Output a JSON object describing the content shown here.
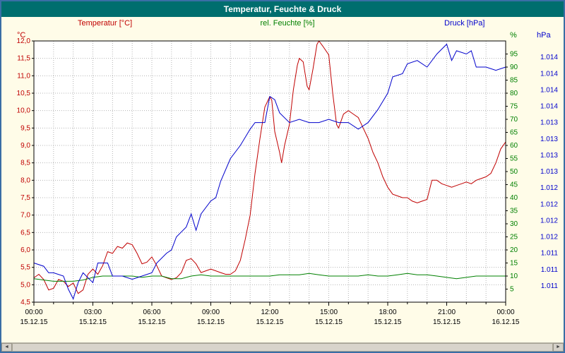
{
  "window": {
    "title": "Temperatur, Feuchte & Druck"
  },
  "colors": {
    "titlebar_bg": "#006e6e",
    "titlebar_text": "#ffffff",
    "frame_border": "#3a6ea5",
    "background": "#fffce8",
    "temperature": "#c00000",
    "humidity": "#008000",
    "pressure": "#0000cc"
  },
  "scrollbar": {
    "left_arrow": "◄",
    "right_arrow": "►"
  },
  "chart_data": {
    "type": "line",
    "title": "Temperatur, Feuchte & Druck",
    "grid": true,
    "grid_color": "#b4b4b4",
    "x_axis": {
      "min": 0,
      "max": 24,
      "minor_step_hours": 1,
      "ticks": [
        {
          "h": 0,
          "time": "00:00",
          "date": "15.12.15"
        },
        {
          "h": 3,
          "time": "03:00",
          "date": "15.12.15"
        },
        {
          "h": 6,
          "time": "06:00",
          "date": "15.12.15"
        },
        {
          "h": 9,
          "time": "09:00",
          "date": "15.12.15"
        },
        {
          "h": 12,
          "time": "12:00",
          "date": "15.12.15"
        },
        {
          "h": 15,
          "time": "15:00",
          "date": "15.12.15"
        },
        {
          "h": 18,
          "time": "18:00",
          "date": "15.12.15"
        },
        {
          "h": 21,
          "time": "21:00",
          "date": "15.12.15"
        },
        {
          "h": 24,
          "time": "00:00",
          "date": "16.12.15"
        }
      ]
    },
    "axes": {
      "temp": {
        "unit": "°C",
        "color": "#c00000",
        "min": 4.5,
        "max": 12.0,
        "ticks": [
          {
            "v": 12.0,
            "label": "12,0"
          },
          {
            "v": 11.5,
            "label": "11,5"
          },
          {
            "v": 11.0,
            "label": "11,0"
          },
          {
            "v": 10.5,
            "label": "10,5"
          },
          {
            "v": 10.0,
            "label": "10,0"
          },
          {
            "v": 9.5,
            "label": "9,5"
          },
          {
            "v": 9.0,
            "label": "9,0"
          },
          {
            "v": 8.5,
            "label": "8,5"
          },
          {
            "v": 8.0,
            "label": "8,0"
          },
          {
            "v": 7.5,
            "label": "7,5"
          },
          {
            "v": 7.0,
            "label": "7,0"
          },
          {
            "v": 6.5,
            "label": "6,5"
          },
          {
            "v": 6.0,
            "label": "6,0"
          },
          {
            "v": 5.5,
            "label": "5,5"
          },
          {
            "v": 5.0,
            "label": "5,0"
          },
          {
            "v": 4.5,
            "label": "4,5"
          }
        ]
      },
      "humidity": {
        "unit": "%",
        "color": "#008000",
        "min": 0,
        "max": 100,
        "ticks": [
          {
            "v": 95,
            "label": "95"
          },
          {
            "v": 90,
            "label": "90"
          },
          {
            "v": 85,
            "label": "85"
          },
          {
            "v": 80,
            "label": "80"
          },
          {
            "v": 75,
            "label": "75"
          },
          {
            "v": 70,
            "label": "70"
          },
          {
            "v": 65,
            "label": "65"
          },
          {
            "v": 60,
            "label": "60"
          },
          {
            "v": 55,
            "label": "55"
          },
          {
            "v": 50,
            "label": "50"
          },
          {
            "v": 45,
            "label": "45"
          },
          {
            "v": 40,
            "label": "40"
          },
          {
            "v": 35,
            "label": "35"
          },
          {
            "v": 30,
            "label": "30"
          },
          {
            "v": 25,
            "label": "25"
          },
          {
            "v": 20,
            "label": "20"
          },
          {
            "v": 15,
            "label": "15"
          },
          {
            "v": 10,
            "label": "10"
          },
          {
            "v": 5,
            "label": "5"
          }
        ]
      },
      "pressure": {
        "unit": "hPa",
        "color": "#0000cc",
        "min": 1010.5,
        "max": 1014.5,
        "ticks": [
          {
            "v": 1014.25,
            "label": "1.014"
          },
          {
            "v": 1014.0,
            "label": "1.014"
          },
          {
            "v": 1013.75,
            "label": "1.014"
          },
          {
            "v": 1013.5,
            "label": "1.014"
          },
          {
            "v": 1013.25,
            "label": "1.013"
          },
          {
            "v": 1013.0,
            "label": "1.013"
          },
          {
            "v": 1012.75,
            "label": "1.013"
          },
          {
            "v": 1012.5,
            "label": "1.013"
          },
          {
            "v": 1012.25,
            "label": "1.012"
          },
          {
            "v": 1012.0,
            "label": "1.012"
          },
          {
            "v": 1011.75,
            "label": "1.012"
          },
          {
            "v": 1011.5,
            "label": "1.012"
          },
          {
            "v": 1011.25,
            "label": "1.011"
          },
          {
            "v": 1011.0,
            "label": "1.011"
          },
          {
            "v": 1010.75,
            "label": "1.011"
          }
        ]
      }
    },
    "series": [
      {
        "name": "Temperatur [°C]",
        "axis": "temp",
        "color": "#c00000",
        "points": [
          [
            0,
            5.2
          ],
          [
            0.25,
            5.3
          ],
          [
            0.5,
            5.15
          ],
          [
            0.75,
            4.85
          ],
          [
            1,
            4.9
          ],
          [
            1.25,
            5.15
          ],
          [
            1.5,
            5.1
          ],
          [
            1.75,
            4.95
          ],
          [
            2,
            5.05
          ],
          [
            2.25,
            4.75
          ],
          [
            2.5,
            4.85
          ],
          [
            2.75,
            5.3
          ],
          [
            3,
            5.45
          ],
          [
            3.25,
            5.3
          ],
          [
            3.5,
            5.55
          ],
          [
            3.75,
            5.95
          ],
          [
            4,
            5.9
          ],
          [
            4.25,
            6.1
          ],
          [
            4.5,
            6.05
          ],
          [
            4.75,
            6.2
          ],
          [
            5,
            6.15
          ],
          [
            5.25,
            5.9
          ],
          [
            5.5,
            5.6
          ],
          [
            5.75,
            5.65
          ],
          [
            6,
            5.8
          ],
          [
            6.25,
            5.55
          ],
          [
            6.5,
            5.25
          ],
          [
            6.75,
            5.2
          ],
          [
            7,
            5.15
          ],
          [
            7.25,
            5.2
          ],
          [
            7.5,
            5.35
          ],
          [
            7.75,
            5.7
          ],
          [
            8,
            5.75
          ],
          [
            8.25,
            5.6
          ],
          [
            8.5,
            5.35
          ],
          [
            8.75,
            5.4
          ],
          [
            9,
            5.45
          ],
          [
            9.25,
            5.4
          ],
          [
            9.5,
            5.35
          ],
          [
            9.75,
            5.3
          ],
          [
            10,
            5.3
          ],
          [
            10.25,
            5.4
          ],
          [
            10.5,
            5.7
          ],
          [
            10.75,
            6.3
          ],
          [
            11,
            7.0
          ],
          [
            11.25,
            8.2
          ],
          [
            11.5,
            9.2
          ],
          [
            11.75,
            10.1
          ],
          [
            12,
            10.4
          ],
          [
            12.1,
            10.3
          ],
          [
            12.25,
            9.4
          ],
          [
            12.5,
            8.8
          ],
          [
            12.6,
            8.5
          ],
          [
            12.75,
            9.0
          ],
          [
            13,
            9.6
          ],
          [
            13.2,
            10.6
          ],
          [
            13.4,
            11.3
          ],
          [
            13.5,
            11.5
          ],
          [
            13.7,
            11.4
          ],
          [
            13.9,
            10.7
          ],
          [
            14,
            10.6
          ],
          [
            14.2,
            11.2
          ],
          [
            14.4,
            11.9
          ],
          [
            14.5,
            12.0
          ],
          [
            14.7,
            11.85
          ],
          [
            15,
            11.6
          ],
          [
            15.2,
            10.5
          ],
          [
            15.4,
            9.6
          ],
          [
            15.5,
            9.5
          ],
          [
            15.75,
            9.9
          ],
          [
            16,
            10.0
          ],
          [
            16.25,
            9.9
          ],
          [
            16.5,
            9.8
          ],
          [
            16.75,
            9.5
          ],
          [
            17,
            9.2
          ],
          [
            17.25,
            8.8
          ],
          [
            17.5,
            8.5
          ],
          [
            17.75,
            8.1
          ],
          [
            18,
            7.8
          ],
          [
            18.25,
            7.6
          ],
          [
            18.5,
            7.55
          ],
          [
            18.75,
            7.5
          ],
          [
            19,
            7.5
          ],
          [
            19.25,
            7.4
          ],
          [
            19.5,
            7.35
          ],
          [
            19.75,
            7.4
          ],
          [
            20,
            7.45
          ],
          [
            20.25,
            8.0
          ],
          [
            20.5,
            8.0
          ],
          [
            20.75,
            7.9
          ],
          [
            21,
            7.85
          ],
          [
            21.25,
            7.8
          ],
          [
            21.5,
            7.85
          ],
          [
            21.75,
            7.9
          ],
          [
            22,
            7.95
          ],
          [
            22.25,
            7.9
          ],
          [
            22.5,
            8.0
          ],
          [
            22.75,
            8.05
          ],
          [
            23,
            8.1
          ],
          [
            23.25,
            8.2
          ],
          [
            23.5,
            8.5
          ],
          [
            23.75,
            8.9
          ],
          [
            24,
            9.1
          ]
        ]
      },
      {
        "name": "rel. Feuchte [%]",
        "axis": "humidity",
        "color": "#008000",
        "points": [
          [
            0,
            9
          ],
          [
            0.5,
            8.5
          ],
          [
            1,
            8
          ],
          [
            1.5,
            8
          ],
          [
            2,
            8
          ],
          [
            2.5,
            8.5
          ],
          [
            3,
            9.5
          ],
          [
            3.5,
            10
          ],
          [
            4,
            10
          ],
          [
            4.5,
            10
          ],
          [
            5,
            10
          ],
          [
            5.5,
            9.5
          ],
          [
            6,
            10
          ],
          [
            6.5,
            10
          ],
          [
            7,
            9
          ],
          [
            7.5,
            9
          ],
          [
            8,
            10
          ],
          [
            8.5,
            10.5
          ],
          [
            9,
            10
          ],
          [
            9.5,
            10
          ],
          [
            10,
            10
          ],
          [
            10.5,
            10
          ],
          [
            11,
            10
          ],
          [
            11.5,
            10
          ],
          [
            12,
            10
          ],
          [
            12.5,
            10.5
          ],
          [
            13,
            10.5
          ],
          [
            13.5,
            10.5
          ],
          [
            14,
            11
          ],
          [
            14.5,
            10.5
          ],
          [
            15,
            10
          ],
          [
            15.5,
            10
          ],
          [
            16,
            10
          ],
          [
            16.5,
            10
          ],
          [
            17,
            10.5
          ],
          [
            17.5,
            10
          ],
          [
            18,
            10
          ],
          [
            18.5,
            10.5
          ],
          [
            19,
            11
          ],
          [
            19.5,
            10.5
          ],
          [
            20,
            10.5
          ],
          [
            20.5,
            10
          ],
          [
            21,
            9.5
          ],
          [
            21.5,
            9
          ],
          [
            22,
            9.5
          ],
          [
            22.5,
            10
          ],
          [
            23,
            10
          ],
          [
            23.5,
            10
          ],
          [
            24,
            10
          ]
        ]
      },
      {
        "name": "Druck [hPa]",
        "axis": "pressure",
        "color": "#0000cc",
        "points": [
          [
            0,
            1011.1
          ],
          [
            0.5,
            1011.05
          ],
          [
            0.75,
            1010.95
          ],
          [
            1,
            1010.95
          ],
          [
            1.5,
            1010.9
          ],
          [
            1.75,
            1010.7
          ],
          [
            2,
            1010.55
          ],
          [
            2.25,
            1010.8
          ],
          [
            2.5,
            1010.95
          ],
          [
            3,
            1010.8
          ],
          [
            3.25,
            1011.1
          ],
          [
            3.75,
            1011.1
          ],
          [
            4,
            1010.9
          ],
          [
            4.5,
            1010.9
          ],
          [
            5,
            1010.85
          ],
          [
            5.5,
            1010.9
          ],
          [
            6,
            1010.95
          ],
          [
            6.25,
            1011.1
          ],
          [
            6.75,
            1011.25
          ],
          [
            7,
            1011.3
          ],
          [
            7.25,
            1011.5
          ],
          [
            7.75,
            1011.65
          ],
          [
            8,
            1011.85
          ],
          [
            8.25,
            1011.6
          ],
          [
            8.5,
            1011.85
          ],
          [
            9,
            1012.05
          ],
          [
            9.25,
            1012.1
          ],
          [
            9.5,
            1012.35
          ],
          [
            10,
            1012.7
          ],
          [
            10.5,
            1012.9
          ],
          [
            11,
            1013.15
          ],
          [
            11.25,
            1013.25
          ],
          [
            11.75,
            1013.25
          ],
          [
            12,
            1013.65
          ],
          [
            12.25,
            1013.6
          ],
          [
            12.5,
            1013.4
          ],
          [
            13,
            1013.25
          ],
          [
            13.5,
            1013.3
          ],
          [
            14,
            1013.25
          ],
          [
            14.5,
            1013.25
          ],
          [
            15,
            1013.3
          ],
          [
            15.5,
            1013.25
          ],
          [
            16,
            1013.25
          ],
          [
            16.5,
            1013.15
          ],
          [
            17,
            1013.25
          ],
          [
            17.5,
            1013.45
          ],
          [
            18,
            1013.7
          ],
          [
            18.25,
            1013.95
          ],
          [
            18.75,
            1014.0
          ],
          [
            19,
            1014.15
          ],
          [
            19.5,
            1014.2
          ],
          [
            20,
            1014.1
          ],
          [
            20.5,
            1014.3
          ],
          [
            21,
            1014.45
          ],
          [
            21.25,
            1014.2
          ],
          [
            21.5,
            1014.35
          ],
          [
            22,
            1014.3
          ],
          [
            22.25,
            1014.35
          ],
          [
            22.5,
            1014.1
          ],
          [
            23,
            1014.1
          ],
          [
            23.5,
            1014.05
          ],
          [
            24,
            1014.1
          ]
        ]
      }
    ]
  }
}
